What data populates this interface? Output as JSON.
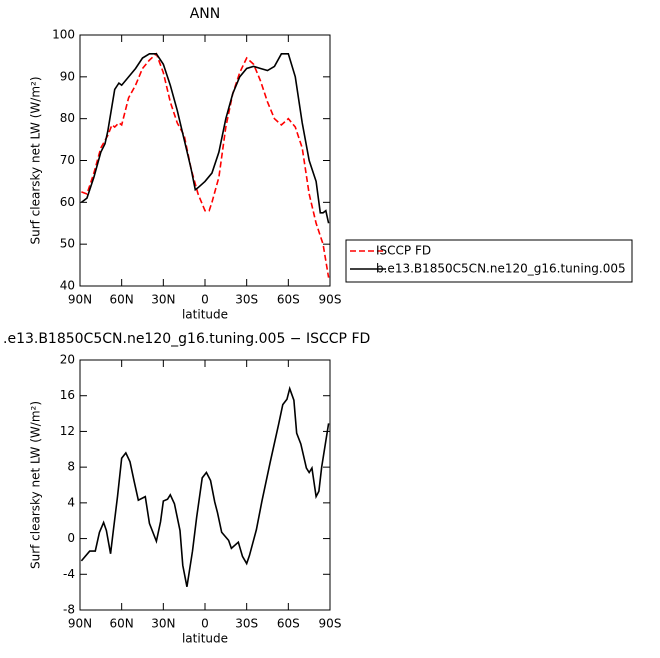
{
  "chart_data": [
    {
      "type": "line",
      "title": "ANN",
      "xlabel": "latitude",
      "ylabel": "Surf clearsky net LW (W/m²)",
      "xlim": [
        90,
        -90
      ],
      "xticks": [
        {
          "value": 90,
          "label": "90N"
        },
        {
          "value": 60,
          "label": "60N"
        },
        {
          "value": 30,
          "label": "30N"
        },
        0,
        {
          "value": -30,
          "label": "30S"
        },
        {
          "value": -60,
          "label": "60S"
        },
        {
          "value": -90,
          "label": "90S"
        }
      ],
      "ylim": [
        40,
        100
      ],
      "yticks": [
        40,
        50,
        60,
        70,
        80,
        90,
        100
      ],
      "legend": "right",
      "series": [
        {
          "name": "ISCCP FD",
          "color": "#ff0000",
          "line_style": "dashed",
          "x": [
            89,
            85,
            80,
            75,
            70,
            67,
            65,
            62,
            60,
            55,
            50,
            45,
            40,
            35,
            30,
            25,
            20,
            15,
            10,
            5,
            0,
            -3,
            -5,
            -10,
            -15,
            -20,
            -25,
            -30,
            -35,
            -40,
            -45,
            -50,
            -55,
            -60,
            -65,
            -70,
            -75,
            -80,
            -85,
            -89
          ],
          "values": [
            62.5,
            62,
            67,
            73,
            76,
            78.5,
            78,
            79,
            78.5,
            85,
            88,
            92,
            94,
            95.5,
            91,
            84,
            79,
            76,
            68,
            62,
            58,
            58,
            60,
            66,
            78,
            86,
            91,
            94.5,
            93,
            89,
            84,
            80,
            78.5,
            80,
            78,
            73,
            62,
            55,
            50,
            42
          ]
        },
        {
          "name": "b.e13.B1850C5CN.ne120_g16.tuning.005",
          "color": "#000000",
          "line_style": "solid",
          "x": [
            89,
            85,
            80,
            75,
            72,
            70,
            67,
            65,
            62,
            60,
            55,
            50,
            45,
            40,
            35,
            30,
            25,
            20,
            15,
            10,
            7,
            5,
            0,
            -5,
            -10,
            -15,
            -20,
            -25,
            -30,
            -35,
            -40,
            -45,
            -50,
            -55,
            -60,
            -65,
            -70,
            -75,
            -80,
            -83,
            -85,
            -87,
            -89
          ],
          "values": [
            60,
            61,
            66,
            72,
            74,
            77,
            83,
            87,
            88.5,
            88,
            90,
            92,
            94.5,
            95.5,
            95.5,
            93,
            88,
            82,
            75,
            68,
            63,
            63.5,
            65,
            67,
            72,
            80,
            86,
            90,
            92,
            92.5,
            92,
            91.5,
            92.5,
            95.5,
            95.5,
            90,
            79,
            70,
            65,
            57.5,
            57.5,
            58,
            55
          ]
        }
      ]
    },
    {
      "type": "line",
      "title": ".e13.B1850C5CN.ne120_g16.tuning.005 − ISCCP FD",
      "xlabel": "latitude",
      "ylabel": "Surf clearsky net LW (W/m²)",
      "xlim": [
        90,
        -90
      ],
      "xticks": [
        {
          "value": 90,
          "label": "90N"
        },
        {
          "value": 60,
          "label": "60N"
        },
        {
          "value": 30,
          "label": "30N"
        },
        0,
        {
          "value": -30,
          "label": "30S"
        },
        {
          "value": -60,
          "label": "60S"
        },
        {
          "value": -90,
          "label": "90S"
        }
      ],
      "ylim": [
        -8,
        20
      ],
      "yticks": [
        -8,
        -4,
        0,
        4,
        8,
        12,
        16,
        20
      ],
      "series": [
        {
          "color": "#000000",
          "line_style": "solid",
          "x": [
            89,
            83,
            79,
            76,
            73,
            71,
            68,
            66,
            63,
            60,
            57,
            54,
            51,
            48,
            43,
            40,
            35,
            32,
            30,
            27,
            25,
            22,
            18,
            16,
            13,
            9,
            6,
            2,
            -1,
            -4,
            -7,
            -9,
            -12,
            -17,
            -19,
            -24,
            -27,
            -30,
            -32,
            -37,
            -41,
            -47,
            -53,
            -56,
            -59,
            -61,
            -64,
            -66,
            -69,
            -73,
            -75,
            -77,
            -80,
            -82,
            -84,
            -89
          ],
          "values": [
            -2.5,
            -1.4,
            -1.4,
            0.7,
            1.8,
            0.9,
            -1.7,
            0.9,
            4.7,
            9,
            9.6,
            8.6,
            6.4,
            4.3,
            4.7,
            1.7,
            -0.3,
            1.9,
            4.2,
            4.4,
            4.9,
            3.9,
            0.9,
            -3,
            -5.4,
            -1.4,
            2.4,
            6.8,
            7.4,
            6.5,
            4.1,
            2.9,
            0.7,
            -0.2,
            -1.1,
            -0.4,
            -2,
            -2.8,
            -1.9,
            1,
            4.2,
            8.6,
            12.8,
            15,
            15.6,
            16.8,
            15.5,
            11.8,
            10.6,
            7.9,
            7.4,
            7.9,
            4.7,
            5.3,
            8,
            12.9
          ]
        }
      ]
    }
  ]
}
